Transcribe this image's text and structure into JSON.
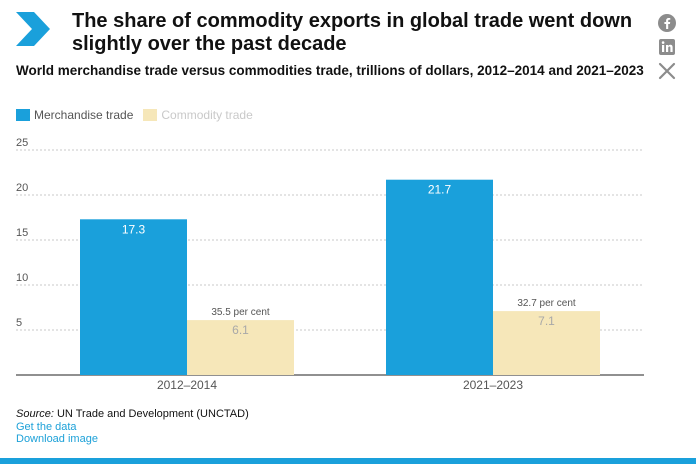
{
  "header": {
    "title": "The share of commodity exports in global trade went down slightly over the past decade",
    "subtitle": "World merchandise trade versus commodities trade, trillions of dollars, 2012–2014 and 2021–2023"
  },
  "share": {
    "icons": [
      "facebook-icon",
      "linkedin-icon",
      "x-icon"
    ]
  },
  "colors": {
    "merchandise": "#1aa0db",
    "commodity": "#f6e7b9",
    "grid": "#c8c8c8",
    "axis": "#222222",
    "link": "#1da1d8"
  },
  "legend": {
    "merchandise": "Merchandise trade",
    "commodity": "Commodity trade"
  },
  "chart_data": {
    "type": "bar",
    "title": "World merchandise trade versus commodities trade, trillions of dollars, 2012–2014 and 2021–2023",
    "categories": [
      "2012–2014",
      "2021–2023"
    ],
    "series": [
      {
        "name": "Merchandise trade",
        "values": [
          17.3,
          21.7
        ],
        "labels": [
          "17.3",
          "21.7"
        ]
      },
      {
        "name": "Commodity trade",
        "values": [
          6.1,
          7.1
        ],
        "labels": [
          "6.1",
          "7.1"
        ]
      }
    ],
    "annotations": [
      "35.5 per cent",
      "32.7 per cent"
    ],
    "yticks": [
      "5",
      "10",
      "15",
      "20",
      "25"
    ],
    "ylim": [
      0,
      25
    ],
    "xlabel": "",
    "ylabel": "",
    "grid": true,
    "legend_position": "top-left"
  },
  "footer": {
    "source_label": "Source:",
    "source_text": "UN Trade and Development (UNCTAD)",
    "get_data": "Get the data",
    "download": "Download image"
  }
}
